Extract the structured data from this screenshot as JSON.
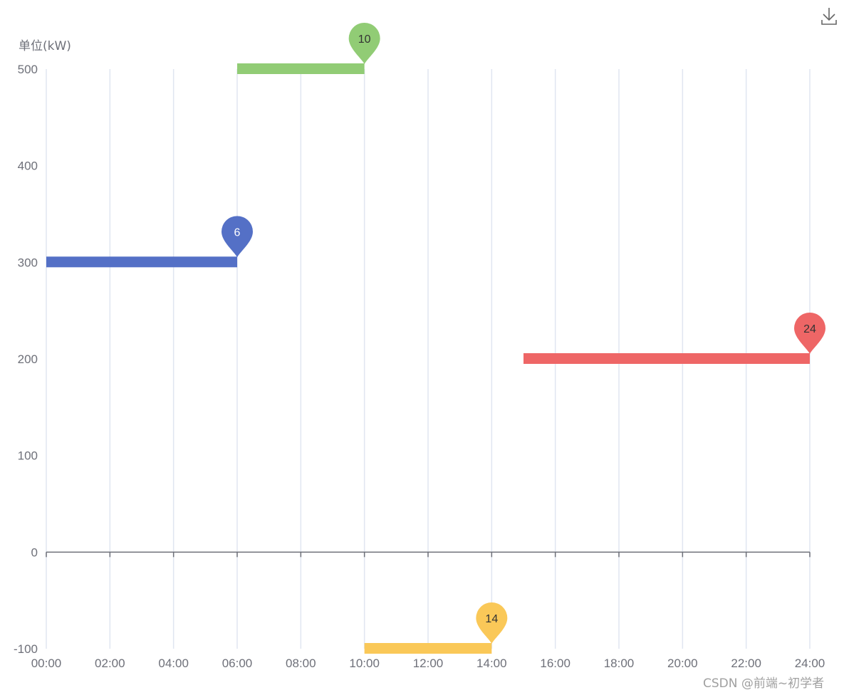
{
  "toolbar": {
    "download_icon": "download-icon",
    "download_label": "Save as image"
  },
  "watermark": "CSDN @前端~初学者",
  "chart_data": {
    "type": "line",
    "subtype": "step segments with pin markers",
    "title": "",
    "xlabel": "",
    "ylabel": "单位(kW)",
    "x_ticks": [
      "00:00",
      "02:00",
      "04:00",
      "06:00",
      "08:00",
      "10:00",
      "12:00",
      "14:00",
      "16:00",
      "18:00",
      "20:00",
      "22:00",
      "24:00"
    ],
    "y_ticks": [
      500,
      400,
      300,
      200,
      100,
      0,
      -100
    ],
    "xlim": [
      0,
      24
    ],
    "ylim": [
      -100,
      500
    ],
    "grid": {
      "vertical": true,
      "horizontal": false
    },
    "legend": null,
    "series": [
      {
        "name": "segment-1",
        "color": "#5470c6",
        "start_hour": 0,
        "end_hour": 6,
        "value": 300,
        "pin_label": "6",
        "pin_text_color": "#ffffff"
      },
      {
        "name": "segment-2",
        "color": "#91cc75",
        "start_hour": 6,
        "end_hour": 10,
        "value": 500,
        "pin_label": "10",
        "pin_text_color": "#333333"
      },
      {
        "name": "segment-3",
        "color": "#fac858",
        "start_hour": 10,
        "end_hour": 14,
        "value": -100,
        "pin_label": "14",
        "pin_text_color": "#333333"
      },
      {
        "name": "segment-4",
        "color": "#ee6666",
        "start_hour": 15,
        "end_hour": 24,
        "value": 200,
        "pin_label": "24",
        "pin_text_color": "#333333"
      }
    ]
  },
  "colors": {
    "axis_text": "#6e7079",
    "grid_line": "#e0e6f1",
    "zero_axis": "#6e7079"
  }
}
